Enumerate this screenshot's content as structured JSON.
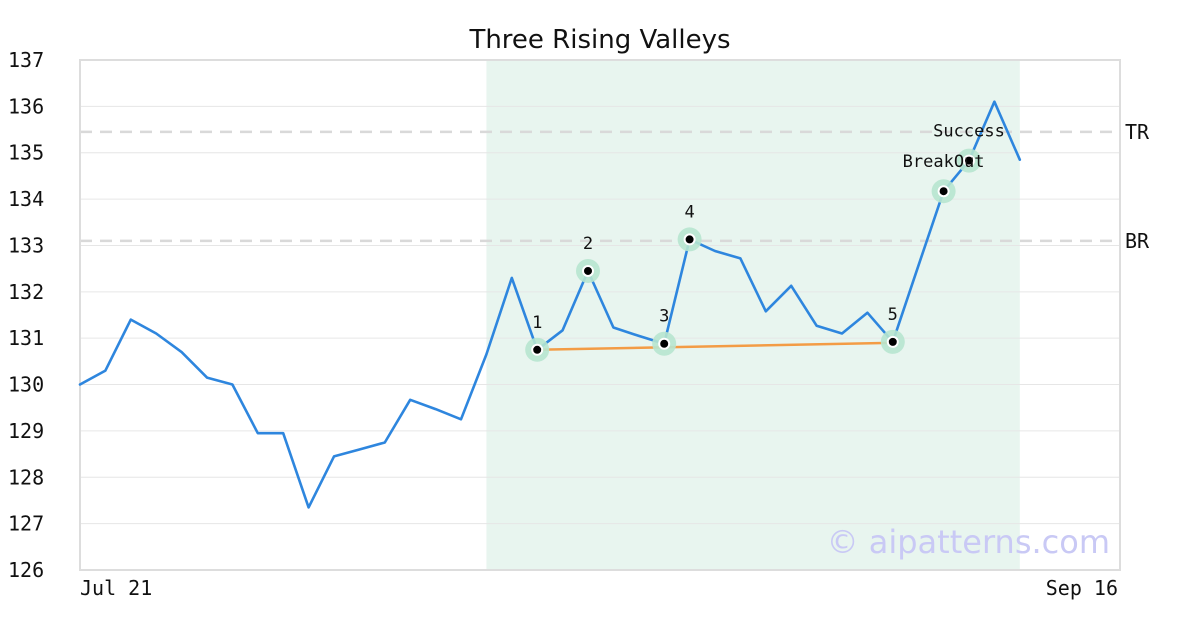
{
  "chart_data": {
    "type": "line",
    "title": "Three Rising Valleys",
    "ylim": [
      126,
      137
    ],
    "yticks": [
      126,
      127,
      128,
      129,
      130,
      131,
      132,
      133,
      134,
      135,
      136,
      137
    ],
    "x_tick_labels": [
      "Jul 21",
      "Sep 16"
    ],
    "grid": true,
    "series": [
      {
        "color": "#2e86de",
        "values": [
          130.0,
          130.3,
          131.4,
          131.1,
          130.7,
          130.15,
          130.0,
          128.95,
          128.95,
          127.35,
          128.45,
          128.6,
          128.75,
          129.67,
          129.47,
          129.25,
          130.65,
          132.3,
          130.75,
          131.17,
          132.45,
          131.23,
          131.05,
          130.88,
          133.13,
          132.88,
          132.72,
          131.58,
          132.13,
          131.27,
          131.1,
          131.55,
          130.92,
          132.55,
          134.17,
          134.83,
          136.1,
          134.85
        ]
      }
    ],
    "highlight_range": {
      "start_index": 16,
      "end_index": 37,
      "color": "#e8f5ef"
    },
    "support_line": {
      "from_index": 18,
      "from_value": 130.75,
      "to_index": 32,
      "to_value": 130.9,
      "color": "#f39c45"
    },
    "reference_lines": [
      {
        "label": "TR",
        "value": 135.45
      },
      {
        "label": "BR",
        "value": 133.1
      }
    ],
    "points": [
      {
        "label": "1",
        "index": 18,
        "value": 130.75
      },
      {
        "label": "2",
        "index": 20,
        "value": 132.45
      },
      {
        "label": "3",
        "index": 23,
        "value": 130.88
      },
      {
        "label": "4",
        "index": 24,
        "value": 133.13
      },
      {
        "label": "5",
        "index": 32,
        "value": 130.92
      },
      {
        "label": "",
        "index": 34,
        "value": 134.17
      },
      {
        "label": "",
        "index": 35,
        "value": 134.83
      }
    ],
    "annotations": [
      {
        "text": "BreakOut",
        "index": 34,
        "value": 134.17
      },
      {
        "text": "Success",
        "index": 35,
        "value": 134.83
      }
    ],
    "watermark": "© aipatterns.com"
  }
}
